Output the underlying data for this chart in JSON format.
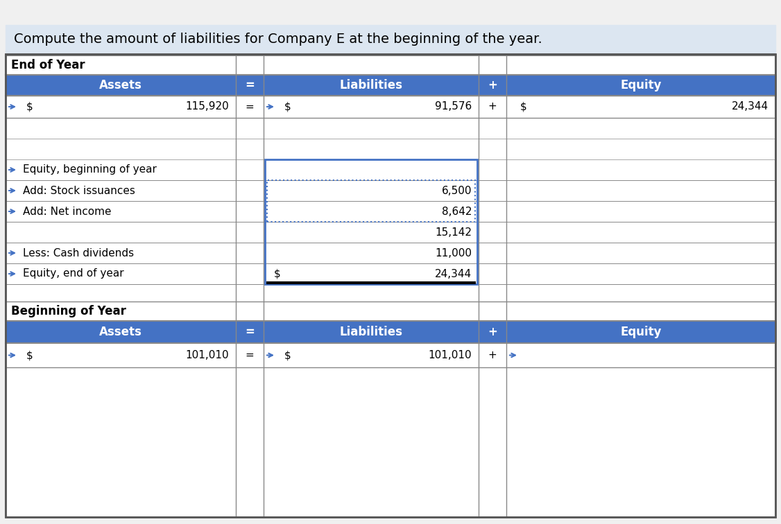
{
  "title": "Compute the amount of liabilities for Company E at the beginning of the year.",
  "title_bg": "#dce6f1",
  "header_bg": "#4472c4",
  "header_text_color": "#ffffff",
  "section_label_color": "#000000",
  "cell_bg_white": "#ffffff",
  "cell_bg_light": "#f2f2f2",
  "border_color": "#000000",
  "blue_border": "#4472c4",
  "dotted_box_color": "#4472c4",
  "end_of_year": {
    "section_title": "End of Year",
    "headers": [
      "Assets",
      "=",
      "Liabilities",
      "+",
      "Equity"
    ],
    "row1": [
      "$",
      "115,920",
      "=",
      "$",
      "91,576",
      "+",
      "$",
      "24,344"
    ],
    "equity_rows": [
      {
        "label": "Equity, beginning of year",
        "value": ""
      },
      {
        "label": "Add: Stock issuances",
        "value": "6,500"
      },
      {
        "label": "Add: Net income",
        "value": "8,642"
      },
      {
        "label": "",
        "value": "15,142"
      },
      {
        "label": "Less: Cash dividends",
        "value": "11,000"
      },
      {
        "label": "Equity, end of year",
        "value": "24,344",
        "has_dollar": true
      }
    ]
  },
  "beginning_of_year": {
    "section_title": "Beginning of Year",
    "headers": [
      "Assets",
      "=",
      "Liabilities",
      "+",
      "Equity"
    ],
    "row1": [
      "$",
      "101,010",
      "=",
      "$",
      "101,010",
      "+",
      ""
    ]
  }
}
